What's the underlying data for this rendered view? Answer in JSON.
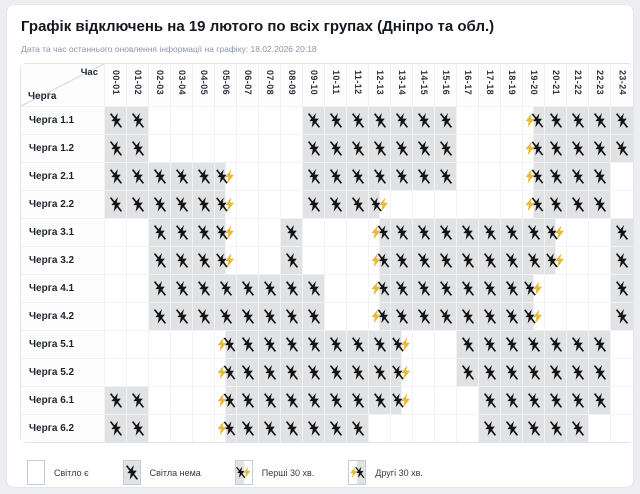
{
  "title": "Графік відключень на 19 лютого по всіх групах (Дніпро та обл.)",
  "subtitle": "Дата та час останнього оновлення інформації на графіку: 18.02.2026 20:18",
  "colors": {
    "outage_cell": "#e1e2e4",
    "bolt_black": "#141414",
    "bolt_yellow": "#e8b83a"
  },
  "table": {
    "corner": {
      "top": "Час",
      "bottom": "Черга"
    },
    "hours": [
      "00-01",
      "01-02",
      "02-03",
      "03-04",
      "04-05",
      "05-06",
      "06-07",
      "07-08",
      "08-09",
      "09-10",
      "10-11",
      "11-12",
      "12-13",
      "13-14",
      "14-15",
      "15-16",
      "16-17",
      "17-18",
      "18-19",
      "19-20",
      "20-21",
      "21-22",
      "22-23",
      "23-24"
    ],
    "cell_states": {
      "W": "light on",
      "B": "no light",
      "F": "outage first 30 min",
      "S": "outage second 30 min"
    },
    "rows": [
      {
        "label": "Черга 1.1",
        "cells": "BBWWWWWWWBBBBBBBWWWSBBBB"
      },
      {
        "label": "Черга 1.2",
        "cells": "BBWWWWWWWBBBBBBBWWWSBBBB"
      },
      {
        "label": "Черга 2.1",
        "cells": "BBBBBFWWWBBBBBBBWWWSBBBW"
      },
      {
        "label": "Черга 2.2",
        "cells": "BBBBBFWWWBBBFWWWWWWSBBBW"
      },
      {
        "label": "Черга 3.1",
        "cells": "WWBBBFWWBWWWSBBBBBBBFWWB"
      },
      {
        "label": "Черга 3.2",
        "cells": "WWBBBFWWBWWWSBBBBBBBFWWB"
      },
      {
        "label": "Черга 4.1",
        "cells": "WWBBBBBBBBWWSBBBBBBFWWWB"
      },
      {
        "label": "Черга 4.2",
        "cells": "WWBBBBBBBBWWSBBBBBBFWWWB"
      },
      {
        "label": "Черга 5.1",
        "cells": "WWWWWSBBBBBBBFWWBBBBBBBW"
      },
      {
        "label": "Черга 5.2",
        "cells": "WWWWWSBBBBBBBFWWBBBBBBBW"
      },
      {
        "label": "Черга 6.1",
        "cells": "BBWWWSBBBBBBBFWWWBBBBBBW"
      },
      {
        "label": "Черга 6.2",
        "cells": "BBWWWSBBBBBBWWWWWBBBBBWW"
      }
    ]
  },
  "legend": [
    {
      "key": "W",
      "label": "Світло є"
    },
    {
      "key": "B",
      "label": "Світла нема"
    },
    {
      "key": "F",
      "label": "Перші 30 хв."
    },
    {
      "key": "S",
      "label": "Другі 30 хв."
    }
  ]
}
